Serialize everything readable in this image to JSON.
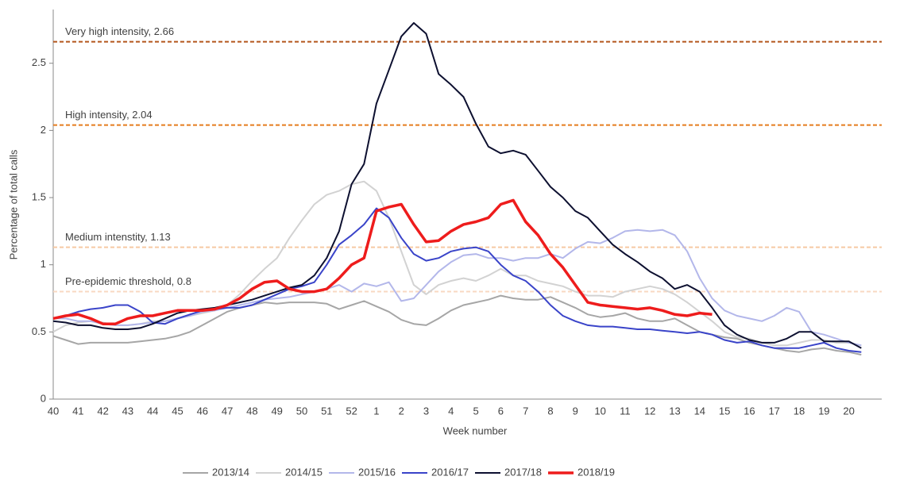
{
  "chart_data": {
    "type": "line",
    "x_label": "Week number",
    "y_label": "Percentage of total calls",
    "categories": [
      "40",
      null,
      "41",
      null,
      "42",
      null,
      "43",
      null,
      "44",
      null,
      "45",
      null,
      "46",
      null,
      "47",
      null,
      "48",
      null,
      "49",
      null,
      "50",
      null,
      "51",
      null,
      "52",
      null,
      "1",
      null,
      "2",
      null,
      "3",
      null,
      "4",
      null,
      "5",
      null,
      "6",
      null,
      "7",
      null,
      "8",
      null,
      "9",
      null,
      "10",
      null,
      "11",
      null,
      "12",
      null,
      "13",
      null,
      "14",
      null,
      "15",
      null,
      "16",
      null,
      "17",
      null,
      "18",
      null,
      "19",
      null,
      "20",
      null
    ],
    "ylim": [
      0,
      2.9
    ],
    "yticks": [
      0,
      0.5,
      1,
      1.5,
      2,
      2.5
    ],
    "thresholds": [
      {
        "label": "Very high intensity, 2.66",
        "value": 2.66,
        "color": "#b4561c"
      },
      {
        "label": "High intensity, 2.04",
        "value": 2.04,
        "color": "#e57c1e"
      },
      {
        "label": "Medium intenstity, 1.13",
        "value": 1.13,
        "color": "#f6c9a3"
      },
      {
        "label": "Pre-epidemic threshold, 0.8",
        "value": 0.8,
        "color": "#f9d8c2"
      }
    ],
    "legend": "bottom",
    "series": [
      {
        "name": "2013/14",
        "color": "#a6a6a6",
        "width": 2,
        "values": [
          0.47,
          0.44,
          0.41,
          0.42,
          0.42,
          0.42,
          0.42,
          0.43,
          0.44,
          0.45,
          0.47,
          0.5,
          0.55,
          0.6,
          0.65,
          0.68,
          0.7,
          0.72,
          0.71,
          0.72,
          0.72,
          0.72,
          0.71,
          0.67,
          0.7,
          0.73,
          0.69,
          0.65,
          0.59,
          0.56,
          0.55,
          0.6,
          0.66,
          0.7,
          0.72,
          0.74,
          0.77,
          0.75,
          0.74,
          0.74,
          0.76,
          0.72,
          0.68,
          0.63,
          0.61,
          0.62,
          0.64,
          0.6,
          0.58,
          0.58,
          0.6,
          0.55,
          0.5,
          0.48,
          0.46,
          0.45,
          0.42,
          0.4,
          0.38,
          0.36,
          0.35,
          0.37,
          0.38,
          0.36,
          0.35,
          0.33
        ]
      },
      {
        "name": "2014/15",
        "color": "#d2d2d2",
        "width": 2,
        "values": [
          0.5,
          0.55,
          0.57,
          0.58,
          0.57,
          0.55,
          0.55,
          0.56,
          0.58,
          0.58,
          0.6,
          0.62,
          0.64,
          0.66,
          0.7,
          0.78,
          0.88,
          0.97,
          1.05,
          1.2,
          1.33,
          1.45,
          1.52,
          1.55,
          1.6,
          1.62,
          1.55,
          1.35,
          1.1,
          0.85,
          0.78,
          0.85,
          0.88,
          0.9,
          0.88,
          0.92,
          0.97,
          0.92,
          0.92,
          0.88,
          0.86,
          0.84,
          0.8,
          0.77,
          0.77,
          0.76,
          0.8,
          0.82,
          0.84,
          0.82,
          0.78,
          0.72,
          0.65,
          0.58,
          0.5,
          0.46,
          0.45,
          0.42,
          0.4,
          0.4,
          0.42,
          0.44,
          0.44,
          0.42,
          0.42,
          0.4
        ]
      },
      {
        "name": "2015/16",
        "color": "#b3b7ea",
        "width": 2,
        "values": [
          0.6,
          0.6,
          0.58,
          0.58,
          0.56,
          0.55,
          0.55,
          0.56,
          0.57,
          0.58,
          0.6,
          0.62,
          0.65,
          0.66,
          0.68,
          0.7,
          0.72,
          0.74,
          0.75,
          0.76,
          0.78,
          0.8,
          0.82,
          0.85,
          0.8,
          0.86,
          0.84,
          0.87,
          0.73,
          0.75,
          0.85,
          0.95,
          1.02,
          1.07,
          1.08,
          1.05,
          1.05,
          1.03,
          1.05,
          1.05,
          1.08,
          1.05,
          1.12,
          1.17,
          1.16,
          1.2,
          1.25,
          1.26,
          1.25,
          1.26,
          1.22,
          1.1,
          0.9,
          0.75,
          0.66,
          0.62,
          0.6,
          0.58,
          0.62,
          0.68,
          0.65,
          0.5,
          0.48,
          0.45,
          0.42,
          0.4
        ]
      },
      {
        "name": "2016/17",
        "color": "#3a44c9",
        "width": 2,
        "values": [
          0.6,
          0.62,
          0.65,
          0.67,
          0.68,
          0.7,
          0.7,
          0.65,
          0.57,
          0.56,
          0.6,
          0.63,
          0.66,
          0.67,
          0.68,
          0.68,
          0.7,
          0.74,
          0.78,
          0.82,
          0.84,
          0.87,
          1.0,
          1.15,
          1.22,
          1.3,
          1.42,
          1.35,
          1.2,
          1.08,
          1.03,
          1.05,
          1.1,
          1.12,
          1.13,
          1.1,
          1.0,
          0.92,
          0.88,
          0.8,
          0.7,
          0.62,
          0.58,
          0.55,
          0.54,
          0.54,
          0.53,
          0.52,
          0.52,
          0.51,
          0.5,
          0.49,
          0.5,
          0.48,
          0.44,
          0.42,
          0.43,
          0.4,
          0.38,
          0.38,
          0.38,
          0.4,
          0.42,
          0.38,
          0.36,
          0.35
        ]
      },
      {
        "name": "2017/18",
        "color": "#0d1030",
        "width": 2,
        "values": [
          0.58,
          0.57,
          0.55,
          0.55,
          0.53,
          0.52,
          0.52,
          0.53,
          0.56,
          0.6,
          0.64,
          0.66,
          0.67,
          0.68,
          0.7,
          0.72,
          0.74,
          0.77,
          0.8,
          0.83,
          0.85,
          0.92,
          1.05,
          1.25,
          1.6,
          1.75,
          2.2,
          2.45,
          2.7,
          2.8,
          2.72,
          2.42,
          2.34,
          2.25,
          2.05,
          1.88,
          1.83,
          1.85,
          1.82,
          1.7,
          1.58,
          1.5,
          1.4,
          1.35,
          1.25,
          1.15,
          1.08,
          1.02,
          0.95,
          0.9,
          0.82,
          0.85,
          0.8,
          0.68,
          0.55,
          0.48,
          0.44,
          0.42,
          0.42,
          0.45,
          0.5,
          0.5,
          0.43,
          0.43,
          0.43,
          0.38
        ]
      },
      {
        "name": "2018/19",
        "color": "#ee1c1c",
        "width": 3.5,
        "values": [
          0.6,
          0.62,
          0.63,
          0.6,
          0.56,
          0.56,
          0.6,
          0.62,
          0.62,
          0.64,
          0.66,
          0.66,
          0.66,
          0.67,
          0.7,
          0.75,
          0.82,
          0.87,
          0.88,
          0.82,
          0.8,
          0.8,
          0.82,
          0.9,
          1.0,
          1.05,
          1.4,
          1.43,
          1.45,
          1.3,
          1.17,
          1.18,
          1.25,
          1.3,
          1.32,
          1.35,
          1.45,
          1.48,
          1.32,
          1.22,
          1.08,
          0.98,
          0.85,
          0.72,
          0.7,
          0.69,
          0.68,
          0.67,
          0.68,
          0.66,
          0.63,
          0.62,
          0.64,
          0.63,
          null,
          null,
          null,
          null,
          null,
          null,
          null,
          null,
          null,
          null,
          null,
          null
        ]
      }
    ]
  }
}
